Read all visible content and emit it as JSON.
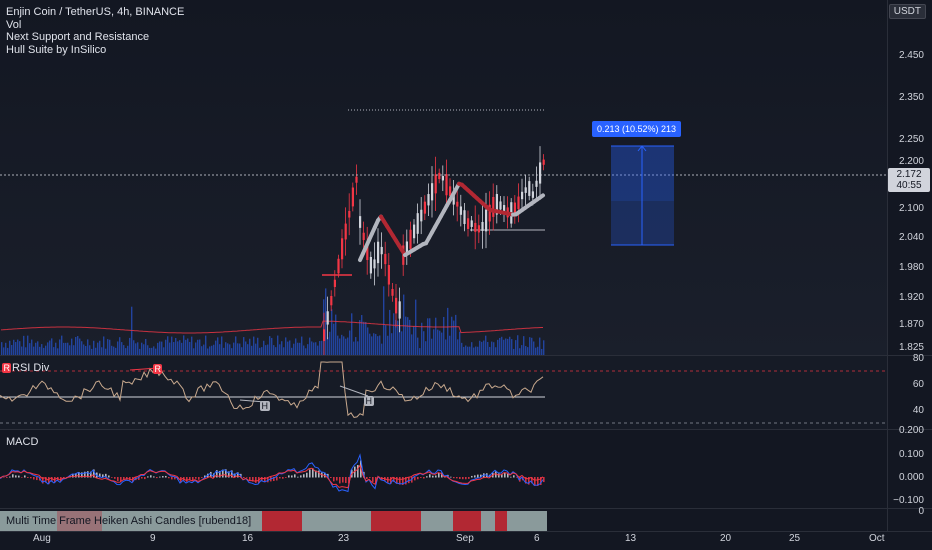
{
  "header": {
    "symbol_line": "Enjin Coin / TetherUS, 4h, BINANCE",
    "indicators": [
      "Vol",
      "Next Support and Resistance",
      "Hull Suite by InSilico"
    ],
    "currency_badge": "USDT"
  },
  "main_axis": {
    "ticks": [
      "2.450",
      "2.350",
      "2.250",
      "2.200",
      "2.100",
      "2.040",
      "1.980",
      "1.920",
      "1.870",
      "1.825"
    ],
    "tick_values": [
      2.45,
      2.35,
      2.25,
      2.2,
      2.1,
      2.04,
      1.98,
      1.92,
      1.87,
      1.825
    ],
    "current_price": "2.172",
    "countdown": "40:55"
  },
  "measure_tool": {
    "label": "0.213 (10.52%) 213"
  },
  "rsi": {
    "title": "RSI Div",
    "ticks": [
      "80",
      "60",
      "40"
    ],
    "markers": [
      "R",
      "R",
      "H",
      "H"
    ]
  },
  "macd": {
    "title": "MACD",
    "ticks": [
      "0.200",
      "0.100",
      "0.000",
      "−0.100"
    ]
  },
  "mtf": {
    "title": "Multi Time Frame Heiken Ashi Candles [rubend18]",
    "tick": "0"
  },
  "xaxis": {
    "labels": [
      "Aug",
      "9",
      "16",
      "23",
      "Sep",
      "6",
      "13",
      "20",
      "25",
      "Oct"
    ]
  },
  "colors": {
    "bg": "#131722",
    "up": "#d1d4dc",
    "down": "#f23645",
    "hull_up": "#b2b5be",
    "hull_down": "#b22833",
    "measure": "#2962ff",
    "volume": "#2962ff"
  }
}
